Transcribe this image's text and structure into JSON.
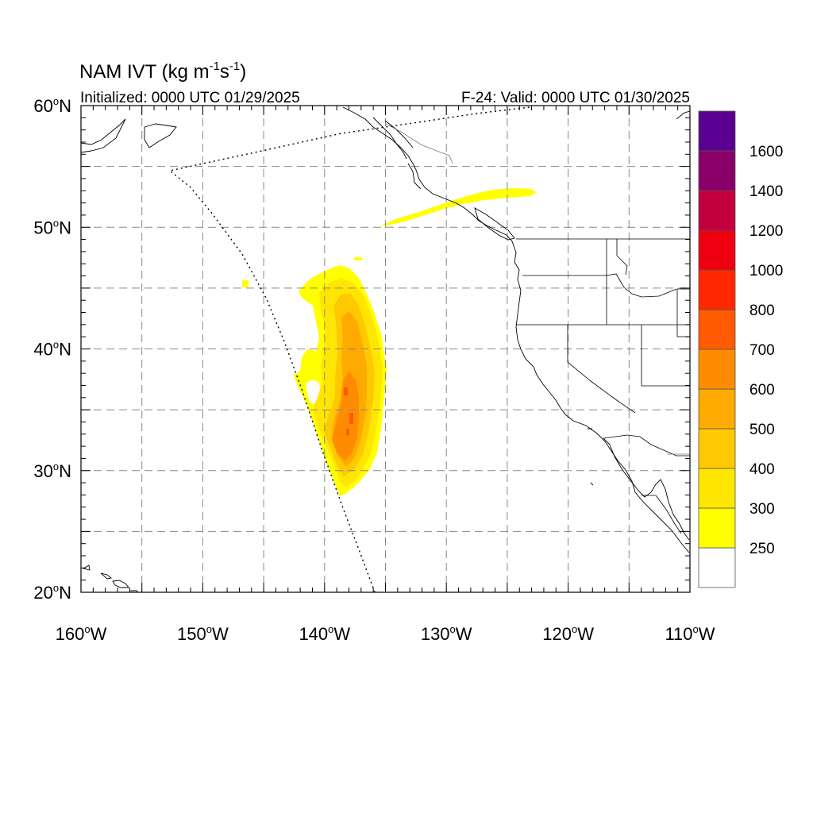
{
  "title": {
    "main": "NAM IVT (kg m",
    "exp1": "-1",
    "mid": "s",
    "exp2": "-1",
    "close": ")"
  },
  "subtitle_left": "Initialized: 0000 UTC 01/29/2025",
  "subtitle_right": "F-24: Valid: 0000 UTC 01/30/2025",
  "map": {
    "lon_range": [
      -160,
      -110
    ],
    "lat_range": [
      20,
      60
    ],
    "grid": "dashed every 5 degrees",
    "lat_labels": [
      {
        "lat": 60,
        "num": "60",
        "deg": "o",
        "hem": "N"
      },
      {
        "lat": 50,
        "num": "50",
        "deg": "o",
        "hem": "N"
      },
      {
        "lat": 40,
        "num": "40",
        "deg": "o",
        "hem": "N"
      },
      {
        "lat": 30,
        "num": "30",
        "deg": "o",
        "hem": "N"
      },
      {
        "lat": 20,
        "num": "20",
        "deg": "o",
        "hem": "N"
      }
    ],
    "lon_labels": [
      {
        "lon": -160,
        "num": "160",
        "deg": "o",
        "hem": "W"
      },
      {
        "lon": -150,
        "num": "150",
        "deg": "o",
        "hem": "W"
      },
      {
        "lon": -140,
        "num": "140",
        "deg": "o",
        "hem": "W"
      },
      {
        "lon": -130,
        "num": "130",
        "deg": "o",
        "hem": "W"
      },
      {
        "lon": -120,
        "num": "120",
        "deg": "o",
        "hem": "W"
      },
      {
        "lon": -110,
        "num": "110",
        "deg": "o",
        "hem": "W"
      }
    ]
  },
  "colorbar": {
    "colors": [
      "#ffffff",
      "#ffff00",
      "#ffe600",
      "#ffc800",
      "#ffaa00",
      "#ff8c00",
      "#ff5a00",
      "#ff2800",
      "#ee0010",
      "#c20040",
      "#8a0068",
      "#5a0090"
    ],
    "labels": [
      "250",
      "300",
      "400",
      "500",
      "600",
      "700",
      "800",
      "1000",
      "1200",
      "1400",
      "1600"
    ]
  }
}
